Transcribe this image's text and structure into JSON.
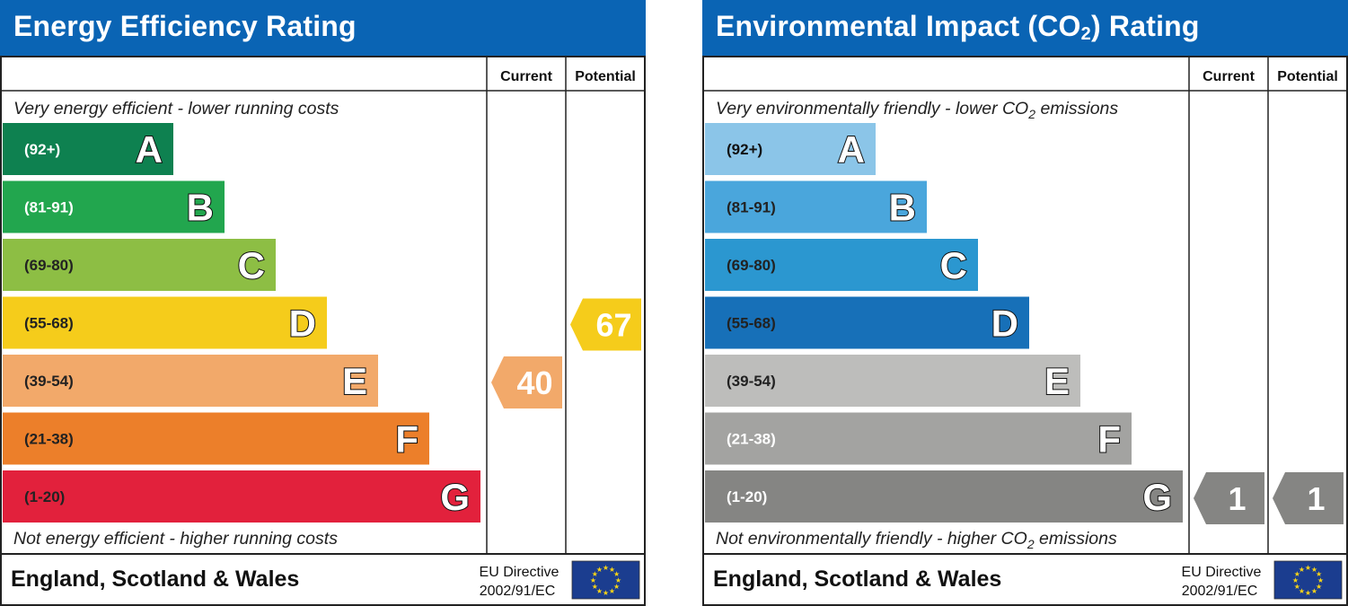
{
  "chart_data": [
    {
      "type": "bar",
      "title": "Energy Efficiency Rating",
      "columns": [
        "Current",
        "Potential"
      ],
      "caption_top": "Very energy efficient - lower running costs",
      "caption_bottom": "Not energy efficient - higher running costs",
      "categories": [
        "A",
        "B",
        "C",
        "D",
        "E",
        "F",
        "G"
      ],
      "ranges": [
        "(92+)",
        "(81-91)",
        "(69-80)",
        "(55-68)",
        "(39-54)",
        "(21-38)",
        "(1-20)"
      ],
      "band_colors": [
        "#0e8150",
        "#22a64e",
        "#8dbe44",
        "#f5cc1b",
        "#f2a96a",
        "#ec7f2a",
        "#e2213c"
      ],
      "range_text_colors": [
        "#ffffff",
        "#ffffff",
        "#222222",
        "#222222",
        "#222222",
        "#222222",
        "#222222"
      ],
      "current": {
        "value": 40,
        "color": "#f2a96a"
      },
      "potential": {
        "value": 67,
        "color": "#f5cc1b"
      },
      "footer_region": "England, Scotland & Wales",
      "footer_directive": [
        "EU Directive",
        "2002/91/EC"
      ]
    },
    {
      "type": "bar",
      "title": "Environmental Impact (CO",
      "title_sub": "2",
      "title_end": ") Rating",
      "columns": [
        "Current",
        "Potential"
      ],
      "caption_top": "Very environmentally friendly - lower CO",
      "caption_top_sub": "2",
      "caption_top_end": " emissions",
      "caption_bottom": "Not environmentally friendly - higher CO",
      "caption_bottom_sub": "2",
      "caption_bottom_end": " emissions",
      "categories": [
        "A",
        "B",
        "C",
        "D",
        "E",
        "F",
        "G"
      ],
      "ranges": [
        "(92+)",
        "(81-91)",
        "(69-80)",
        "(55-68)",
        "(39-54)",
        "(21-38)",
        "(1-20)"
      ],
      "band_colors": [
        "#8bc5e8",
        "#4aa6dc",
        "#2b97d0",
        "#1770b8",
        "#bdbdbb",
        "#a3a3a1",
        "#858583"
      ],
      "range_text_colors": [
        "#111111",
        "#222222",
        "#222222",
        "#222222",
        "#222222",
        "#ffffff",
        "#ffffff"
      ],
      "current": {
        "value": 1,
        "color": "#858583"
      },
      "potential": {
        "value": 1,
        "color": "#858583"
      },
      "footer_region": "England, Scotland & Wales",
      "footer_directive": [
        "EU Directive",
        "2002/91/EC"
      ]
    }
  ],
  "eu_flag": {
    "icon": "eu-flag-icon",
    "background": "#1b3d8f",
    "stars": "#f7d417"
  },
  "title_bar_color": "#0a64b4"
}
